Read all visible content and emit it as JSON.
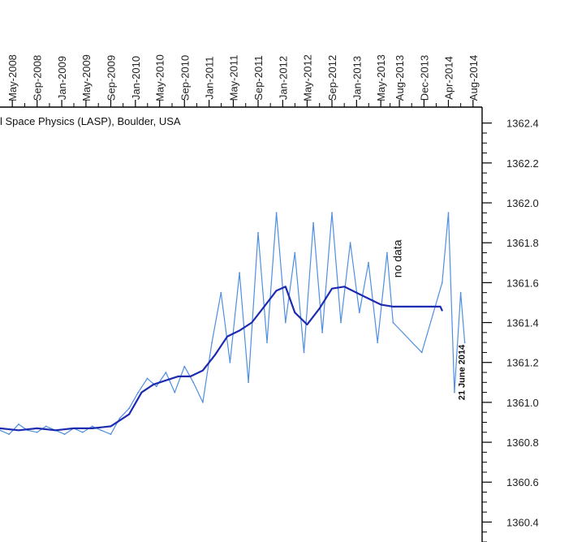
{
  "chart_data": {
    "type": "line",
    "source_text": "l Space Physics (LASP), Boulder, USA",
    "x_ticks": [
      "May-2008",
      "Sep-2008",
      "Jan-2009",
      "May-2009",
      "Sep-2009",
      "Jan-2010",
      "May-2010",
      "Sep-2010",
      "Jan-2011",
      "May-2011",
      "Sep-2011",
      "Jan-2012",
      "May-2012",
      "Sep-2012",
      "Jan-2013",
      "May-2013",
      "Aug-2013",
      "Dec-2013",
      "Apr-2014",
      "Aug-2014"
    ],
    "y_ticks": [
      "1362.4",
      "1362.2",
      "1362.0",
      "1361.8",
      "1361.6",
      "1361.4",
      "1361.2",
      "1361.0",
      "1360.8",
      "1360.6",
      "1360.4"
    ],
    "ylim": [
      1360.3,
      1362.48
    ],
    "xlim": [
      "2008-03-01",
      "2014-09-15"
    ],
    "grid": false,
    "annotations": [
      {
        "text": "no data",
        "x": "2013-08-10",
        "y": 1361.72
      },
      {
        "text": "21 June 2014",
        "x": "2014-06-21",
        "y": 1361.15
      }
    ],
    "series": [
      {
        "style": "daily",
        "color": "#4f8fe0",
        "x": [
          "2008-03-01",
          "2008-04-15",
          "2008-06-01",
          "2008-07-15",
          "2008-09-01",
          "2008-10-15",
          "2008-12-01",
          "2009-01-15",
          "2009-03-01",
          "2009-04-15",
          "2009-06-01",
          "2009-07-15",
          "2009-09-01",
          "2009-10-15",
          "2009-12-01",
          "2010-01-15",
          "2010-03-01",
          "2010-04-15",
          "2010-06-01",
          "2010-07-15",
          "2010-09-01",
          "2010-10-15",
          "2010-12-01",
          "2011-01-15",
          "2011-03-01",
          "2011-04-15",
          "2011-06-01",
          "2011-07-15",
          "2011-09-01",
          "2011-10-15",
          "2011-12-01",
          "2012-01-15",
          "2012-03-01",
          "2012-04-15",
          "2012-06-01",
          "2012-07-15",
          "2012-09-01",
          "2012-10-15",
          "2012-12-01",
          "2013-01-15",
          "2013-03-01",
          "2013-04-15",
          "2013-06-01",
          "2013-07-01",
          "2013-11-20",
          "2014-03-01",
          "2014-04-01",
          "2014-05-01",
          "2014-06-01",
          "2014-06-21"
        ],
        "y": [
          1360.86,
          1360.84,
          1360.89,
          1360.86,
          1360.85,
          1360.88,
          1360.86,
          1360.84,
          1360.87,
          1360.85,
          1360.88,
          1360.86,
          1360.84,
          1360.92,
          1360.97,
          1361.05,
          1361.12,
          1361.08,
          1361.15,
          1361.05,
          1361.18,
          1361.1,
          1361.0,
          1361.3,
          1361.55,
          1361.2,
          1361.65,
          1361.1,
          1361.85,
          1361.3,
          1361.95,
          1361.4,
          1361.75,
          1361.25,
          1361.9,
          1361.35,
          1361.95,
          1361.4,
          1361.8,
          1361.45,
          1361.7,
          1361.3,
          1361.75,
          1361.4,
          1361.25,
          1361.6,
          1361.95,
          1361.05,
          1361.55,
          1361.3
        ]
      },
      {
        "style": "smoothed",
        "color": "#1c2bb0",
        "x": [
          "2008-03-01",
          "2008-06-01",
          "2008-09-01",
          "2008-12-01",
          "2009-03-01",
          "2009-06-01",
          "2009-09-01",
          "2009-12-01",
          "2010-02-01",
          "2010-04-01",
          "2010-06-01",
          "2010-08-01",
          "2010-10-01",
          "2010-12-01",
          "2011-02-01",
          "2011-04-01",
          "2011-06-01",
          "2011-08-01",
          "2011-10-01",
          "2011-12-01",
          "2012-01-15",
          "2012-03-01",
          "2012-05-01",
          "2012-07-01",
          "2012-09-01",
          "2012-11-01",
          "2013-01-01",
          "2013-03-01",
          "2013-05-01",
          "2013-07-01",
          "2013-09-01",
          "2013-11-01",
          "2014-01-01",
          "2014-02-20",
          "2014-03-01"
        ],
        "y": [
          1360.87,
          1360.86,
          1360.87,
          1360.86,
          1360.87,
          1360.87,
          1360.88,
          1360.94,
          1361.05,
          1361.09,
          1361.11,
          1361.13,
          1361.13,
          1361.16,
          1361.24,
          1361.33,
          1361.36,
          1361.4,
          1361.48,
          1361.56,
          1361.58,
          1361.45,
          1361.39,
          1361.47,
          1361.57,
          1361.58,
          1361.55,
          1361.52,
          1361.49,
          1361.48,
          1361.48,
          1361.48,
          1361.48,
          1361.48,
          1361.46
        ]
      }
    ]
  }
}
